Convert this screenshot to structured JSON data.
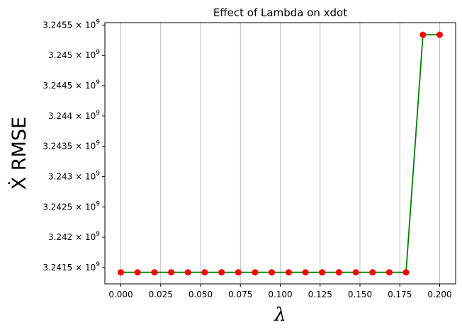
{
  "chart_data": {
    "type": "line",
    "title": "Effect of Lambda on xdot",
    "xlabel": "λ",
    "ylabel": "Ẋ RMSE",
    "xlim": [
      -0.01,
      0.21
    ],
    "ylim": [
      3241230000.0,
      3245540000.0
    ],
    "x_ticks": [
      0.0,
      0.025,
      0.05,
      0.075,
      0.1,
      0.125,
      0.15,
      0.175,
      0.2
    ],
    "x_tick_labels": [
      "0.000",
      "0.025",
      "0.050",
      "0.075",
      "0.100",
      "0.125",
      "0.150",
      "0.175",
      "0.200"
    ],
    "y_ticks": [
      3241500000.0,
      3242000000.0,
      3242500000.0,
      3243000000.0,
      3243500000.0,
      3244000000.0,
      3244500000.0,
      3245000000.0,
      3245500000.0
    ],
    "y_tick_mantissas": [
      "3.2415",
      "3.242",
      "3.2425",
      "3.243",
      "3.2435",
      "3.244",
      "3.2445",
      "3.245",
      "3.2455"
    ],
    "y_tick_base": "× 10",
    "y_tick_exp": "9",
    "grid": "x-only",
    "line_color": "#008000",
    "marker_color": "#ff0000",
    "series": [
      {
        "x": [
          0.0,
          0.0105,
          0.0211,
          0.0316,
          0.0421,
          0.0526,
          0.0632,
          0.0737,
          0.0842,
          0.0947,
          0.1053,
          0.1158,
          0.1263,
          0.1368,
          0.1474,
          0.1579,
          0.1684,
          0.1789,
          0.1895,
          0.2
        ],
        "y": [
          3241420000.0,
          3241420000.0,
          3241420000.0,
          3241420000.0,
          3241420000.0,
          3241420000.0,
          3241420000.0,
          3241420000.0,
          3241420000.0,
          3241420000.0,
          3241420000.0,
          3241420000.0,
          3241420000.0,
          3241420000.0,
          3241420000.0,
          3241420000.0,
          3241420000.0,
          3241420000.0,
          3245340000.0,
          3245340000.0
        ]
      }
    ]
  }
}
